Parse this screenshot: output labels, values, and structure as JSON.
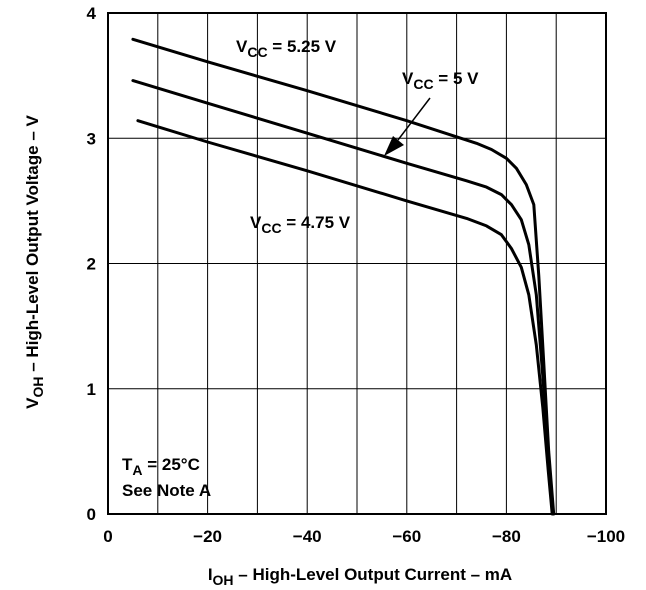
{
  "chart_data": {
    "type": "line",
    "title": "",
    "xlabel": {
      "main": "I",
      "sub": "OH",
      "rest": " – High-Level Output Current – mA"
    },
    "ylabel": {
      "main": "V",
      "sub": "OH",
      "rest": " – High-Level Output Voltage – V"
    },
    "xlim": [
      0,
      -100
    ],
    "ylim": [
      0,
      4
    ],
    "x_ticks": [
      0,
      -20,
      -40,
      -60,
      -80,
      -100
    ],
    "x_tick_labels": [
      "0",
      "−20",
      "−40",
      "−60",
      "−80",
      "−100"
    ],
    "y_ticks": [
      0,
      1,
      2,
      3,
      4
    ],
    "y_tick_labels": [
      "0",
      "1",
      "2",
      "3",
      "4"
    ],
    "grid": true,
    "series": [
      {
        "name": "VCC = 5.25 V",
        "label_main": "V",
        "label_sub": "CC",
        "label_rest": " = 5.25 V",
        "x": [
          -5,
          -20,
          -40,
          -60,
          -74,
          -77,
          -80,
          -82,
          -84,
          -85.5,
          -86.5,
          -87.5,
          -88.5,
          -89.5
        ],
        "y": [
          3.79,
          3.61,
          3.38,
          3.14,
          2.96,
          2.91,
          2.84,
          2.76,
          2.63,
          2.47,
          1.9,
          1.2,
          0.5,
          0.0
        ]
      },
      {
        "name": "VCC = 5 V",
        "label_main": "V",
        "label_sub": "CC",
        "label_rest": " = 5 V",
        "x": [
          -5,
          -20,
          -40,
          -60,
          -72,
          -76,
          -79,
          -81,
          -83,
          -84.5,
          -86,
          -87.3,
          -88.5,
          -89.3
        ],
        "y": [
          3.46,
          3.28,
          3.04,
          2.8,
          2.66,
          2.61,
          2.55,
          2.47,
          2.35,
          2.15,
          1.75,
          1.1,
          0.45,
          0.0
        ]
      },
      {
        "name": "VCC = 4.75 V",
        "label_main": "V",
        "label_sub": "CC",
        "label_rest": " = 4.75 V",
        "x": [
          -6,
          -20,
          -40,
          -60,
          -72,
          -76,
          -79,
          -81,
          -83,
          -84.5,
          -86,
          -87.3,
          -88.4,
          -89.2
        ],
        "y": [
          3.14,
          2.97,
          2.74,
          2.5,
          2.36,
          2.3,
          2.23,
          2.12,
          1.97,
          1.75,
          1.35,
          0.85,
          0.35,
          0.0
        ]
      }
    ],
    "annotations": {
      "ta": {
        "main": "T",
        "sub": "A",
        "rest": " = 25°C"
      },
      "note": "See Note A"
    }
  }
}
